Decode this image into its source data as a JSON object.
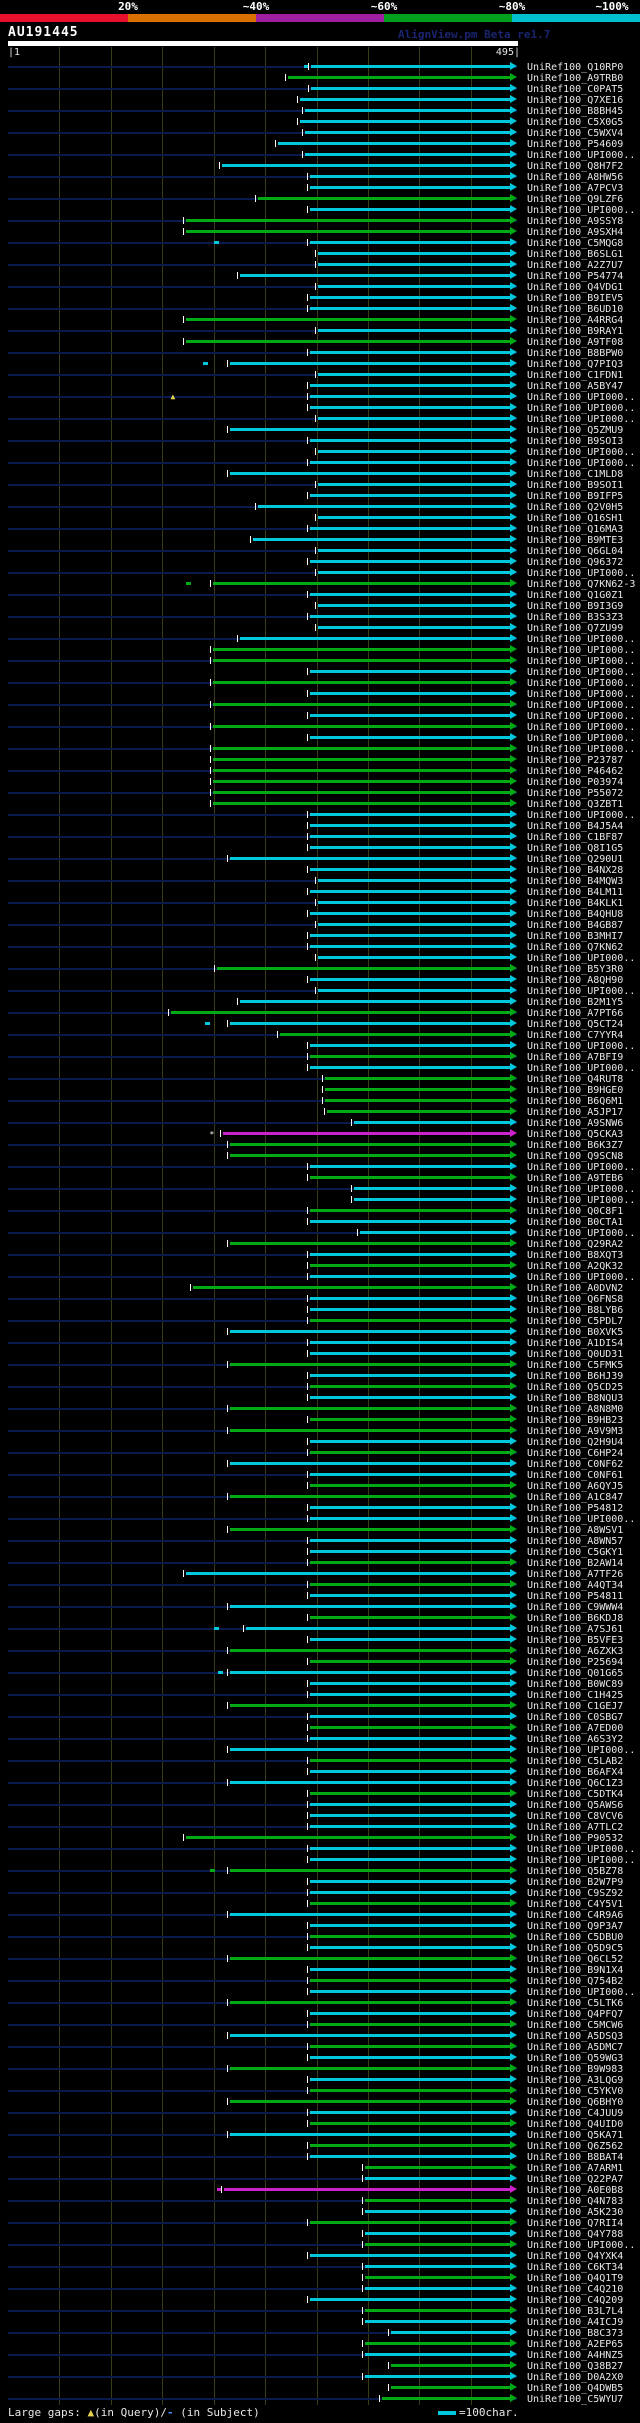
{
  "header": {
    "scale_labels": [
      "20%",
      "~40%",
      "~60%",
      "~80%",
      "~100%"
    ],
    "scale_label_centers": [
      128,
      256,
      384,
      512,
      612
    ],
    "scale_colors": [
      "#e8112d",
      "#db7100",
      "#a01ea0",
      "#00a01e",
      "#00c0d0"
    ],
    "query_name": "AU191445",
    "app_title": "AlignView.pm Beta re1.7",
    "ruler_start": "|1",
    "ruler_end": "495|",
    "query_length": 495
  },
  "footer": {
    "legend_prefix": "Large gaps: ",
    "gap_query_symbol": "▲",
    "gap_query_text": "(in Query)/",
    "gap_subject_symbol": "-",
    "gap_subject_text": " (in Subject)",
    "scalebar_label": "=100char."
  },
  "colors": {
    "cyan_hit": "#00c8dc",
    "green_hit": "#00aa14",
    "magenta_hit": "#cc22cc",
    "guide_line": "#081a4e",
    "gridline": "#3c3c14",
    "label_text": "#e8e8e8"
  },
  "hit_prefix": "UniRef100_",
  "hit_fields": [
    "id",
    "start_char",
    "color(c=cyan,g=green,m=magenta)",
    "marker(d=dot,s=star,t=triangle)",
    "marker_char"
  ],
  "hits": [
    [
      "Q10RP0",
      295,
      "c",
      "d",
      288
    ],
    [
      "A9TRB0",
      272,
      "g",
      "",
      0
    ],
    [
      "C0PAT5",
      295,
      "c",
      "",
      0
    ],
    [
      "Q7XE16",
      284,
      "c",
      "",
      0
    ],
    [
      "B8BH45",
      289,
      "c",
      "",
      0
    ],
    [
      "C5X0G5",
      284,
      "c",
      "",
      0
    ],
    [
      "C5WXV4",
      289,
      "c",
      "",
      0
    ],
    [
      "P54609",
      263,
      "c",
      "",
      0
    ],
    [
      "UPI000..",
      289,
      "c",
      "",
      0
    ],
    [
      "Q8H7F2",
      208,
      "c",
      "",
      0
    ],
    [
      "A8HW56",
      294,
      "c",
      "",
      0
    ],
    [
      "A7PCV3",
      294,
      "c",
      "",
      0
    ],
    [
      "Q9LZF6",
      243,
      "g",
      "",
      0
    ],
    [
      "UPI000..",
      294,
      "c",
      "",
      0
    ],
    [
      "A9SSY8",
      173,
      "g",
      "",
      0
    ],
    [
      "A9SXH4",
      173,
      "g",
      "",
      0
    ],
    [
      "C5MQG8",
      294,
      "c",
      "d",
      200
    ],
    [
      "B6SLG1",
      301,
      "c",
      "",
      0
    ],
    [
      "A2Z7U7",
      301,
      "c",
      "",
      0
    ],
    [
      "P54774",
      226,
      "c",
      "",
      0
    ],
    [
      "Q4VDG1",
      301,
      "c",
      "",
      0
    ],
    [
      "B9IEV5",
      294,
      "c",
      "",
      0
    ],
    [
      "B6UD10",
      294,
      "c",
      "",
      0
    ],
    [
      "A4RRG4",
      173,
      "g",
      "",
      0
    ],
    [
      "B9RAY1",
      301,
      "c",
      "",
      0
    ],
    [
      "A9TF08",
      173,
      "g",
      "",
      0
    ],
    [
      "B8BPW0",
      294,
      "c",
      "",
      0
    ],
    [
      "Q7PIQ3",
      216,
      "c",
      "d",
      190
    ],
    [
      "C1FDN1",
      301,
      "c",
      "",
      0
    ],
    [
      "A5BY47",
      294,
      "c",
      "",
      0
    ],
    [
      "UPI000..",
      294,
      "c",
      "t",
      158
    ],
    [
      "UPI000..",
      294,
      "c",
      "",
      0
    ],
    [
      "UPI000..",
      301,
      "c",
      "",
      0
    ],
    [
      "Q5ZMU9",
      216,
      "c",
      "",
      0
    ],
    [
      "B9SOI3",
      294,
      "c",
      "",
      0
    ],
    [
      "UPI000..",
      301,
      "c",
      "",
      0
    ],
    [
      "UPI000..",
      294,
      "c",
      "",
      0
    ],
    [
      "C1MLD8",
      216,
      "c",
      "",
      0
    ],
    [
      "B9SOI1",
      301,
      "c",
      "",
      0
    ],
    [
      "B9IFP5",
      294,
      "c",
      "",
      0
    ],
    [
      "Q2V0H5",
      243,
      "c",
      "",
      0
    ],
    [
      "Q16SH1",
      301,
      "c",
      "",
      0
    ],
    [
      "Q16MA3",
      294,
      "c",
      "",
      0
    ],
    [
      "B9MTE3",
      238,
      "c",
      "",
      0
    ],
    [
      "Q6GL04",
      301,
      "c",
      "",
      0
    ],
    [
      "Q96372",
      294,
      "c",
      "",
      0
    ],
    [
      "UPI000..",
      301,
      "c",
      "",
      0
    ],
    [
      "Q7KN62-3",
      199,
      "g",
      "d",
      173
    ],
    [
      "Q1G0Z1",
      294,
      "c",
      "",
      0
    ],
    [
      "B9I3G9",
      301,
      "c",
      "",
      0
    ],
    [
      "B3S3Z3",
      294,
      "c",
      "",
      0
    ],
    [
      "Q7ZU99",
      301,
      "c",
      "",
      0
    ],
    [
      "UPI000..",
      226,
      "c",
      "",
      0
    ],
    [
      "UPI000..",
      199,
      "g",
      "",
      0
    ],
    [
      "UPI000..",
      199,
      "g",
      "",
      0
    ],
    [
      "UPI000..",
      294,
      "c",
      "",
      0
    ],
    [
      "UPI000..",
      199,
      "g",
      "",
      0
    ],
    [
      "UPI000..",
      294,
      "c",
      "",
      0
    ],
    [
      "UPI000..",
      199,
      "g",
      "",
      0
    ],
    [
      "UPI000..",
      294,
      "c",
      "",
      0
    ],
    [
      "UPI000..",
      199,
      "g",
      "",
      0
    ],
    [
      "UPI000..",
      294,
      "c",
      "",
      0
    ],
    [
      "UPI000..",
      199,
      "g",
      "",
      0
    ],
    [
      "P23787",
      199,
      "g",
      "",
      0
    ],
    [
      "P46462",
      199,
      "g",
      "",
      0
    ],
    [
      "P03974",
      199,
      "g",
      "",
      0
    ],
    [
      "P55072",
      199,
      "g",
      "",
      0
    ],
    [
      "Q3ZBT1",
      199,
      "g",
      "",
      0
    ],
    [
      "UPI000..",
      294,
      "c",
      "",
      0
    ],
    [
      "B4J5A4",
      294,
      "c",
      "",
      0
    ],
    [
      "C1BF87",
      294,
      "c",
      "",
      0
    ],
    [
      "Q8I1G5",
      294,
      "c",
      "",
      0
    ],
    [
      "Q290U1",
      216,
      "c",
      "",
      0
    ],
    [
      "B4NX28",
      294,
      "c",
      "",
      0
    ],
    [
      "B4MQW3",
      301,
      "c",
      "",
      0
    ],
    [
      "B4LM11",
      294,
      "c",
      "",
      0
    ],
    [
      "B4KLK1",
      301,
      "c",
      "",
      0
    ],
    [
      "B4QHU8",
      294,
      "c",
      "",
      0
    ],
    [
      "B4GB87",
      301,
      "c",
      "",
      0
    ],
    [
      "B3MHI7",
      294,
      "c",
      "",
      0
    ],
    [
      "Q7KN62",
      294,
      "c",
      "",
      0
    ],
    [
      "UPI000..",
      301,
      "c",
      "",
      0
    ],
    [
      "B5Y3R0",
      203,
      "g",
      "",
      0
    ],
    [
      "A8QH90",
      294,
      "c",
      "",
      0
    ],
    [
      "UPI000..",
      301,
      "c",
      "",
      0
    ],
    [
      "B2M1Y5",
      226,
      "c",
      "",
      0
    ],
    [
      "A7PT66",
      158,
      "g",
      "",
      0
    ],
    [
      "Q5CT24",
      216,
      "c",
      "d",
      192
    ],
    [
      "C7YYR4",
      264,
      "g",
      "",
      0
    ],
    [
      "UPI000..",
      294,
      "c",
      "",
      0
    ],
    [
      "A7BFI9",
      294,
      "g",
      "",
      0
    ],
    [
      "UPI000..",
      294,
      "c",
      "",
      0
    ],
    [
      "Q4RUT8",
      308,
      "g",
      "",
      0
    ],
    [
      "B9HGE0",
      308,
      "g",
      "",
      0
    ],
    [
      "B6Q6M1",
      308,
      "g",
      "",
      0
    ],
    [
      "A5JP17",
      310,
      "g",
      "",
      0
    ],
    [
      "A9SNW6",
      336,
      "c",
      "",
      0
    ],
    [
      "Q5CKA3",
      209,
      "m",
      "s",
      196
    ],
    [
      "B6K3Z7",
      216,
      "g",
      "",
      0
    ],
    [
      "Q9SCN8",
      216,
      "g",
      "",
      0
    ],
    [
      "UPI000..",
      294,
      "c",
      "",
      0
    ],
    [
      "A9TEB6",
      294,
      "g",
      "",
      0
    ],
    [
      "UPI000..",
      336,
      "c",
      "",
      0
    ],
    [
      "UPI000..",
      336,
      "c",
      "",
      0
    ],
    [
      "Q0C8F1",
      294,
      "g",
      "",
      0
    ],
    [
      "B0CTA1",
      294,
      "c",
      "",
      0
    ],
    [
      "UPI000..",
      342,
      "c",
      "",
      0
    ],
    [
      "Q29RA2",
      216,
      "g",
      "",
      0
    ],
    [
      "B8XQT3",
      294,
      "c",
      "",
      0
    ],
    [
      "A2QK32",
      294,
      "g",
      "",
      0
    ],
    [
      "UPI000..",
      294,
      "c",
      "",
      0
    ],
    [
      "A0DVN2",
      180,
      "g",
      "",
      0
    ],
    [
      "Q6FNS8",
      294,
      "c",
      "",
      0
    ],
    [
      "B8LYB6",
      294,
      "c",
      "",
      0
    ],
    [
      "C5PDL7",
      294,
      "g",
      "",
      0
    ],
    [
      "B0XVK5",
      216,
      "c",
      "",
      0
    ],
    [
      "A1DIS4",
      294,
      "c",
      "",
      0
    ],
    [
      "Q0UD31",
      294,
      "c",
      "",
      0
    ],
    [
      "C5FMK5",
      216,
      "g",
      "",
      0
    ],
    [
      "B6HJ39",
      294,
      "c",
      "",
      0
    ],
    [
      "Q5CD25",
      294,
      "g",
      "",
      0
    ],
    [
      "B8NQU3",
      294,
      "c",
      "",
      0
    ],
    [
      "A8N8M0",
      216,
      "g",
      "",
      0
    ],
    [
      "B9HB23",
      294,
      "g",
      "",
      0
    ],
    [
      "A9V9M3",
      216,
      "g",
      "",
      0
    ],
    [
      "Q2H9U4",
      294,
      "c",
      "",
      0
    ],
    [
      "C6HP24",
      294,
      "g",
      "",
      0
    ],
    [
      "C0NF62",
      216,
      "c",
      "",
      0
    ],
    [
      "C0NF61",
      294,
      "c",
      "",
      0
    ],
    [
      "A6QYJ5",
      294,
      "g",
      "",
      0
    ],
    [
      "A1C847",
      216,
      "g",
      "",
      0
    ],
    [
      "P54812",
      294,
      "c",
      "",
      0
    ],
    [
      "UPI000..",
      294,
      "c",
      "",
      0
    ],
    [
      "A8WSV1",
      216,
      "g",
      "",
      0
    ],
    [
      "A8WN57",
      294,
      "c",
      "",
      0
    ],
    [
      "C5GKY1",
      294,
      "c",
      "",
      0
    ],
    [
      "B2AW14",
      294,
      "g",
      "",
      0
    ],
    [
      "A7TF26",
      173,
      "c",
      "",
      0
    ],
    [
      "A4QT34",
      294,
      "g",
      "",
      0
    ],
    [
      "P54811",
      294,
      "c",
      "",
      0
    ],
    [
      "C9WWW4",
      216,
      "c",
      "",
      0
    ],
    [
      "B6KDJ8",
      294,
      "g",
      "",
      0
    ],
    [
      "A7SJ61",
      231,
      "c",
      "d",
      200
    ],
    [
      "B5VFE3",
      294,
      "c",
      "",
      0
    ],
    [
      "A6ZXK3",
      216,
      "g",
      "",
      0
    ],
    [
      "P25694",
      294,
      "g",
      "",
      0
    ],
    [
      "Q01G65",
      216,
      "c",
      "d",
      204
    ],
    [
      "B0WC89",
      294,
      "c",
      "",
      0
    ],
    [
      "C1H425",
      294,
      "c",
      "",
      0
    ],
    [
      "C1GEJ7",
      216,
      "g",
      "",
      0
    ],
    [
      "C0SBG7",
      294,
      "c",
      "",
      0
    ],
    [
      "A7ED00",
      294,
      "g",
      "",
      0
    ],
    [
      "A6S3Y2",
      294,
      "c",
      "",
      0
    ],
    [
      "UPI000..",
      216,
      "c",
      "",
      0
    ],
    [
      "C5LAB2",
      294,
      "g",
      "",
      0
    ],
    [
      "B6AFX4",
      294,
      "c",
      "",
      0
    ],
    [
      "Q6C1Z3",
      216,
      "c",
      "",
      0
    ],
    [
      "C5DTK4",
      294,
      "g",
      "",
      0
    ],
    [
      "Q5AWS6",
      294,
      "c",
      "",
      0
    ],
    [
      "C8VCV6",
      294,
      "c",
      "",
      0
    ],
    [
      "A7TLC2",
      294,
      "c",
      "",
      0
    ],
    [
      "P90532",
      173,
      "g",
      "",
      0
    ],
    [
      "UPI000..",
      294,
      "c",
      "",
      0
    ],
    [
      "UPI000..",
      294,
      "c",
      "",
      0
    ],
    [
      "Q5BZ78",
      216,
      "g",
      "d",
      196
    ],
    [
      "B2W7P9",
      294,
      "c",
      "",
      0
    ],
    [
      "C9SZ92",
      294,
      "c",
      "",
      0
    ],
    [
      "C4Y5V1",
      294,
      "g",
      "",
      0
    ],
    [
      "C4R9A6",
      216,
      "c",
      "",
      0
    ],
    [
      "Q9P3A7",
      294,
      "c",
      "",
      0
    ],
    [
      "C5DBU0",
      294,
      "g",
      "",
      0
    ],
    [
      "Q5D9C5",
      294,
      "c",
      "",
      0
    ],
    [
      "Q6CL52",
      216,
      "g",
      "",
      0
    ],
    [
      "B9N1X4",
      294,
      "c",
      "",
      0
    ],
    [
      "Q754B2",
      294,
      "g",
      "",
      0
    ],
    [
      "UPI000..",
      294,
      "c",
      "",
      0
    ],
    [
      "C5LTK6",
      216,
      "g",
      "",
      0
    ],
    [
      "Q4PFQ7",
      294,
      "c",
      "",
      0
    ],
    [
      "C5MCW6",
      294,
      "g",
      "",
      0
    ],
    [
      "A5DSQ3",
      216,
      "c",
      "",
      0
    ],
    [
      "A5DMC7",
      294,
      "g",
      "",
      0
    ],
    [
      "Q59WG3",
      294,
      "c",
      "",
      0
    ],
    [
      "B9W983",
      216,
      "g",
      "",
      0
    ],
    [
      "A3LQG9",
      294,
      "c",
      "",
      0
    ],
    [
      "C5YKV0",
      294,
      "g",
      "",
      0
    ],
    [
      "Q6BHY0",
      216,
      "g",
      "",
      0
    ],
    [
      "C4JUU9",
      294,
      "c",
      "",
      0
    ],
    [
      "Q4UID0",
      294,
      "g",
      "",
      0
    ],
    [
      "Q5KA71",
      216,
      "c",
      "",
      0
    ],
    [
      "Q6Z562",
      294,
      "g",
      "",
      0
    ],
    [
      "B8BAT4",
      294,
      "c",
      "",
      0
    ],
    [
      "A7ARM1",
      347,
      "g",
      "",
      0
    ],
    [
      "Q22PA7",
      347,
      "c",
      "",
      0
    ],
    [
      "A0E0B8",
      210,
      "m",
      "d",
      203
    ],
    [
      "Q4N783",
      347,
      "g",
      "",
      0
    ],
    [
      "A5K230",
      347,
      "c",
      "",
      0
    ],
    [
      "Q7RII4",
      294,
      "g",
      "",
      0
    ],
    [
      "Q4Y788",
      347,
      "c",
      "",
      0
    ],
    [
      "UPI000..",
      347,
      "g",
      "",
      0
    ],
    [
      "Q4YXK4",
      294,
      "c",
      "",
      0
    ],
    [
      "C6KT34",
      347,
      "c",
      "",
      0
    ],
    [
      "Q4Q1T9",
      347,
      "g",
      "",
      0
    ],
    [
      "C4Q210",
      347,
      "c",
      "",
      0
    ],
    [
      "C4Q209",
      294,
      "c",
      "",
      0
    ],
    [
      "B3L7L4",
      347,
      "g",
      "",
      0
    ],
    [
      "A4ICJ9",
      347,
      "c",
      "",
      0
    ],
    [
      "B8C373",
      372,
      "c",
      "",
      0
    ],
    [
      "A2EP65",
      347,
      "g",
      "",
      0
    ],
    [
      "A4HNZ5",
      347,
      "c",
      "",
      0
    ],
    [
      "Q38B27",
      372,
      "g",
      "",
      0
    ],
    [
      "D0A2X0",
      347,
      "c",
      "",
      0
    ],
    [
      "Q4DWB5",
      372,
      "g",
      "",
      0
    ],
    [
      "C5WYU7",
      364,
      "g",
      "",
      0
    ]
  ]
}
